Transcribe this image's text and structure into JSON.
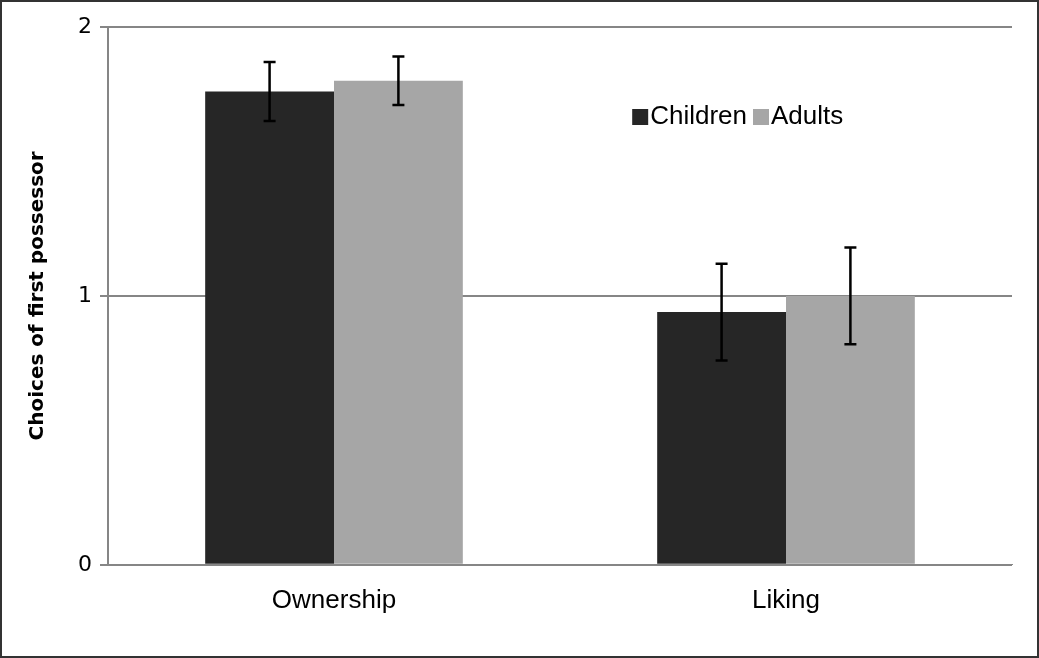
{
  "chart_data": {
    "type": "bar",
    "ylabel": "Choices of first possessor",
    "categories": [
      "Ownership",
      "Liking"
    ],
    "series": [
      {
        "name": "Children",
        "color": "#262626",
        "values": [
          1.76,
          0.94
        ],
        "errors": [
          0.11,
          0.18
        ]
      },
      {
        "name": "Adults",
        "color": "#a6a6a6",
        "values": [
          1.8,
          1.0
        ],
        "errors": [
          0.09,
          0.18
        ]
      }
    ],
    "ylim": [
      0,
      2
    ],
    "yticks": [
      0,
      1,
      2
    ],
    "grid": "y",
    "legend": "top right"
  }
}
